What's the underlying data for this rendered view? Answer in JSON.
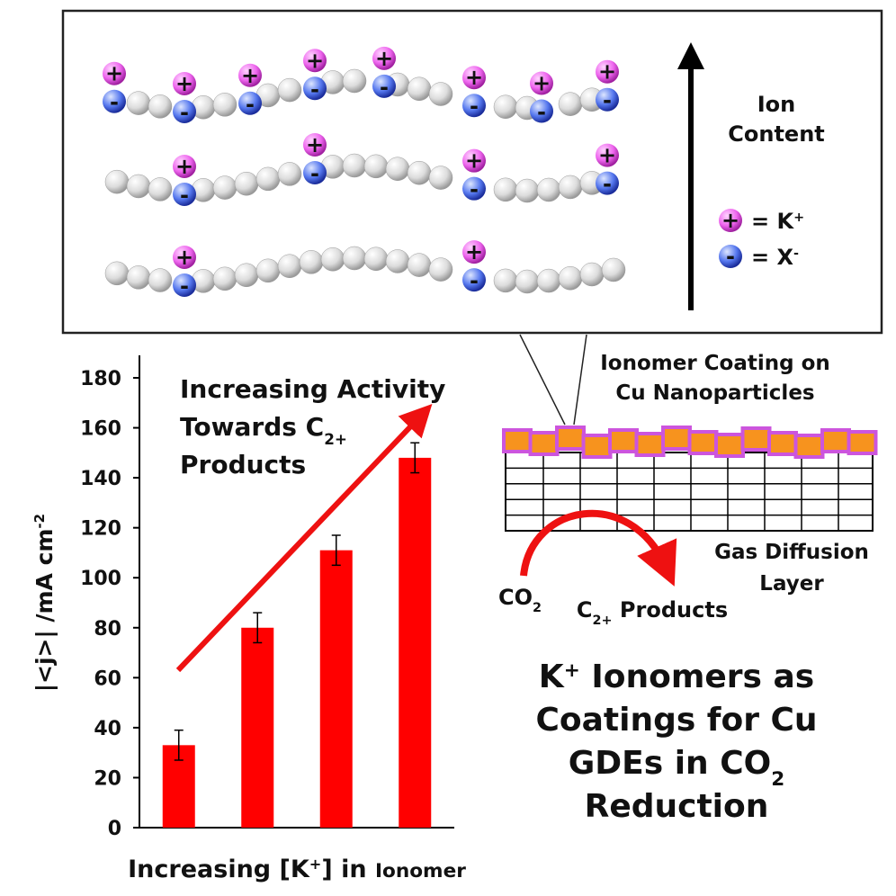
{
  "chart_data": {
    "type": "bar",
    "categories": [
      null,
      null,
      null,
      null
    ],
    "values": [
      33,
      80,
      111,
      148
    ],
    "errors": [
      6,
      6,
      6,
      6
    ],
    "color": "#ff0000",
    "ylim": [
      0,
      180
    ],
    "yticks": [
      0,
      20,
      40,
      60,
      80,
      100,
      120,
      140,
      160,
      180
    ],
    "y_label": [
      {
        "text": "|<j>| /mA cm"
      },
      {
        "sup": "-2"
      }
    ],
    "x_label": [
      {
        "text": "Increasing [K"
      },
      {
        "sup": "+"
      },
      {
        "text": "] in "
      },
      {
        "small": "Ionomer"
      }
    ],
    "annotation": [
      [
        {
          "text": "Increasing Activity"
        }
      ],
      [
        {
          "text": "Towards C"
        },
        {
          "sub": "2+"
        }
      ],
      [
        {
          "text": "Products"
        }
      ]
    ]
  },
  "diagram": {
    "axis_label": [
      "Ion",
      "Content"
    ],
    "legend": [
      [
        {
          "text": "= K"
        },
        {
          "sup": "+"
        }
      ],
      [
        {
          "text": "= X"
        },
        {
          "sup": "-"
        }
      ]
    ],
    "ion_signs": {
      "cation": "+",
      "anion": "-"
    },
    "coating_label": [
      "Ionomer Coating on",
      "Cu Nanoparticles"
    ],
    "gdl_label": [
      "Gas Diffusion",
      "Layer"
    ],
    "reactant": [
      {
        "text": "CO"
      },
      {
        "sub": "2"
      }
    ],
    "product": [
      {
        "text": "C"
      },
      {
        "sub": "2+"
      },
      {
        "text": " Products"
      }
    ]
  },
  "summary": [
    [
      {
        "text": "K"
      },
      {
        "sup": "+"
      },
      {
        "text": " Ionomers as"
      }
    ],
    [
      {
        "text": "Coatings for Cu"
      }
    ],
    [
      {
        "text": "GDEs in CO"
      },
      {
        "sub": "2"
      }
    ],
    [
      {
        "text": "Reduction"
      }
    ]
  ]
}
